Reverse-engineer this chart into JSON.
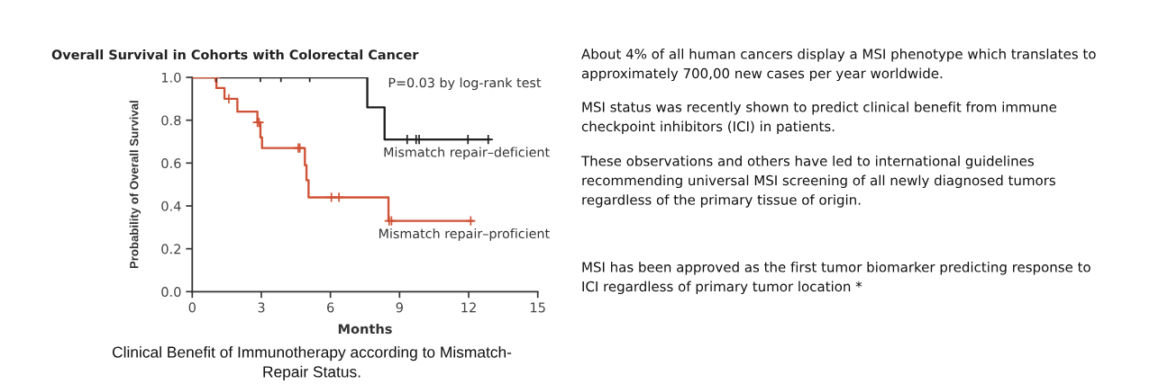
{
  "chart_data": {
    "type": "step",
    "title": "Overall Survival in Cohorts with Colorectal Cancer",
    "xlabel": "Months",
    "ylabel": "Probability of Overall Survival",
    "xlim": [
      0,
      15
    ],
    "xticks": [
      0,
      3,
      6,
      9,
      12,
      15
    ],
    "ylim": [
      0,
      1
    ],
    "yticks": [
      {
        "value": 0,
        "label": "0.0"
      },
      {
        "value": 0.2,
        "label": "0.2"
      },
      {
        "value": 0.4,
        "label": "0.4"
      },
      {
        "value": 0.6,
        "label": "0.6"
      },
      {
        "value": 0.8,
        "label": "0.8"
      },
      {
        "value": 1,
        "label": "1.0"
      }
    ],
    "series": [
      {
        "name": "Mismatch repair–deficient",
        "color": "#1e1e1e",
        "x": [
          0,
          7.6,
          8.35,
          12.9
        ],
        "values": [
          1.0,
          0.86,
          0.71,
          0.71
        ]
      },
      {
        "name": "Mismatch repair–proficient",
        "color": "#cf5236",
        "x": [
          0,
          1.05,
          1.4,
          1.96,
          2.83,
          2.96,
          3.03,
          4.89,
          4.96,
          5.05,
          8.52,
          12.16
        ],
        "values": [
          1.0,
          0.95,
          0.9,
          0.84,
          0.79,
          0.72,
          0.67,
          0.59,
          0.52,
          0.44,
          0.33,
          0.33
        ]
      },
      {
        "type": "scatter",
        "marker": "cross",
        "color": "#1e1e1e",
        "x": [
          1.04,
          2.96,
          3.85,
          5.1,
          9.33,
          9.72,
          9.85,
          11.97,
          12.85
        ],
        "values": [
          1.0,
          1.0,
          1.0,
          1.0,
          0.71,
          0.71,
          0.71,
          0.71,
          0.71
        ]
      },
      {
        "type": "scatter",
        "marker": "cross",
        "color": "#cf5236",
        "x": [
          1.0,
          1.59,
          2.83,
          2.9,
          4.6,
          4.67,
          6.04,
          6.37,
          8.55,
          8.65,
          12.09
        ],
        "values": [
          1.0,
          0.9,
          0.79,
          0.79,
          0.67,
          0.67,
          0.44,
          0.44,
          0.33,
          0.33,
          0.33
        ]
      }
    ],
    "annotations": [
      "P=0.03 by log-rank test",
      "Clinical Benefit of Immunotherapy according to Mismatch-\nRepair Status.",
      "About 4% of all human cancers display a MSI phenotype which translates to\napproximately 700,00 new cases per year worldwide.",
      "MSI status was recently shown to predict clinical benefit from immune\ncheckpoint inhibitors (ICI) in patients.",
      "These observations and others have led to international guidelines\nrecommending universal MSI screening of all newly diagnosed tumors\nregardless of the primary tissue of origin.",
      "MSI has been approved as the first tumor biomarker predicting response to\nICI regardless of primary tumor location *"
    ]
  }
}
